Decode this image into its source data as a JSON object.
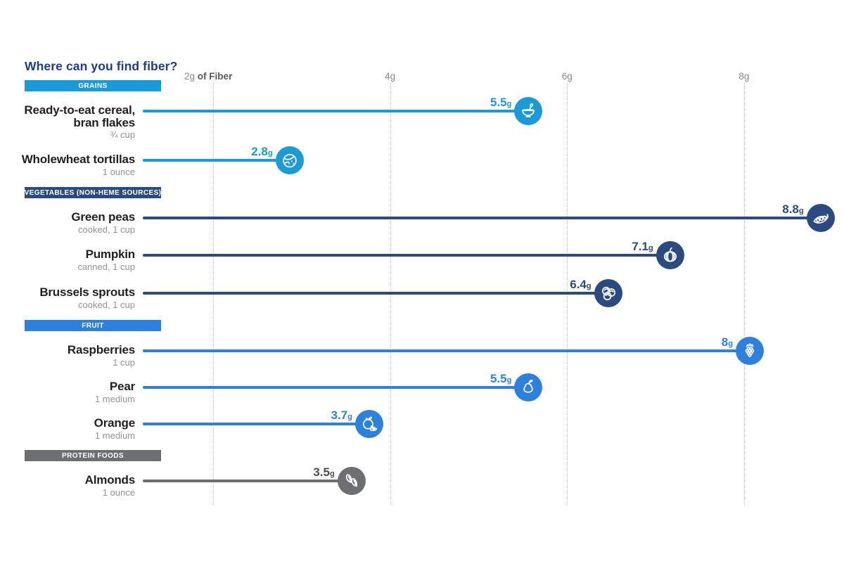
{
  "page": {
    "title": "Where can you find fiber?",
    "title_color": "#1e3c87",
    "background": "#ffffff"
  },
  "chart_data": {
    "type": "lollipop",
    "title": "Where can you find fiber?",
    "xlabel": "Fiber (grams)",
    "xlim": [
      0,
      9.1
    ],
    "grid": "vertical-dotted",
    "unit": "g",
    "x_axis": {
      "ticks": [
        {
          "value": 2,
          "label": "2g",
          "suffix": " of Fiber"
        },
        {
          "value": 4,
          "label": "4g",
          "suffix": ""
        },
        {
          "value": 6,
          "label": "6g",
          "suffix": ""
        },
        {
          "value": 8,
          "label": "8g",
          "suffix": ""
        }
      ]
    },
    "sections": [
      {
        "label": "GRAINS",
        "color": "#1b9ad6",
        "value_color": "#1b9ad6",
        "items": [
          {
            "name_lines": [
              "Ready-to-eat cereal,",
              "bran flakes"
            ],
            "portion": "¾ cup",
            "value": 5.5,
            "value_label": "5.5",
            "icon": "cereal-bowl-icon"
          },
          {
            "name_lines": [
              "Wholewheat tortillas"
            ],
            "portion": "1 ounce",
            "value": 2.8,
            "value_label": "2.8",
            "icon": "tortilla-icon"
          }
        ]
      },
      {
        "label": "VEGETABLES (NON-HEME SOURCES)",
        "color": "#2b4b7e",
        "value_color": "#2b4b7e",
        "items": [
          {
            "name_lines": [
              "Green peas"
            ],
            "portion": "cooked, 1 cup",
            "value": 8.8,
            "value_label": "8.8",
            "icon": "pea-pod-icon"
          },
          {
            "name_lines": [
              "Pumpkin"
            ],
            "portion": "canned, 1 cup",
            "value": 7.1,
            "value_label": "7.1",
            "icon": "pumpkin-icon"
          },
          {
            "name_lines": [
              "Brussels sprouts"
            ],
            "portion": "cooked, 1 cup",
            "value": 6.4,
            "value_label": "6.4",
            "icon": "brussels-sprouts-icon"
          }
        ]
      },
      {
        "label": "FRUIT",
        "color": "#2e80dd",
        "value_color": "#2e80dd",
        "items": [
          {
            "name_lines": [
              "Raspberries"
            ],
            "portion": "1 cup",
            "value": 8,
            "value_label": "8",
            "icon": "raspberry-icon"
          },
          {
            "name_lines": [
              "Pear"
            ],
            "portion": "1 medium",
            "value": 5.5,
            "value_label": "5.5",
            "icon": "pear-icon"
          },
          {
            "name_lines": [
              "Orange"
            ],
            "portion": "1 medium",
            "value": 3.7,
            "value_label": "3.7",
            "icon": "orange-icon"
          }
        ]
      },
      {
        "label": "PROTEIN FOODS",
        "color": "#6d6e71",
        "value_color": "#4d4d4f",
        "items": [
          {
            "name_lines": [
              "Almonds"
            ],
            "portion": "1 ounce",
            "value": 3.5,
            "value_label": "3.5",
            "icon": "almonds-icon"
          }
        ]
      }
    ]
  }
}
